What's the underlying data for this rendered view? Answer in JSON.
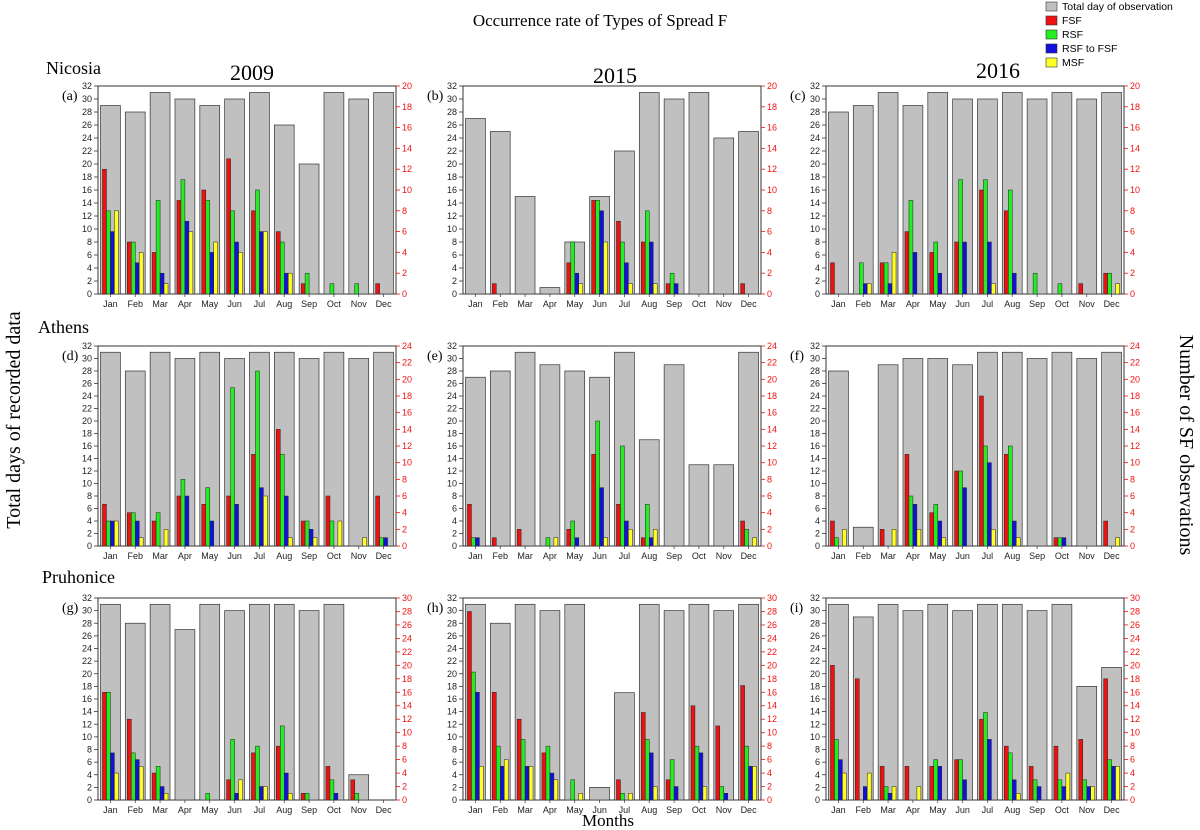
{
  "figure": {
    "title": "Occurrence rate of Types of Spread F",
    "ylabel_left": "Total days of recorded data",
    "ylabel_right": "Number of  SF observations",
    "xlabel": "Months",
    "stations": [
      "Nicosia",
      "Athens",
      "Pruhonice"
    ],
    "years": [
      "2009",
      "2015",
      "2016"
    ]
  },
  "legend": {
    "entries": [
      {
        "label": "Total day of observation",
        "color": "#c0c0c0"
      },
      {
        "label": "FSF",
        "color": "#ee1111"
      },
      {
        "label": "RSF",
        "color": "#22ee22"
      },
      {
        "label": "RSF to FSF",
        "color": "#1111dd"
      },
      {
        "label": "MSF",
        "color": "#ffff22"
      }
    ]
  },
  "chart_data": [
    {
      "type": "bar",
      "panel": "(a)",
      "station": "Nicosia",
      "year": "2009",
      "categories": [
        "Jan",
        "Feb",
        "Mar",
        "Apr",
        "May",
        "Jun",
        "Jul",
        "Aug",
        "Sep",
        "Oct",
        "Nov",
        "Dec"
      ],
      "left_ylim": [
        0,
        32
      ],
      "right_ylim": [
        0,
        20
      ],
      "series": [
        {
          "name": "Total day of observation",
          "axis": "left",
          "values": [
            29,
            28,
            31,
            30,
            29,
            30,
            31,
            26,
            20,
            31,
            30,
            31
          ]
        },
        {
          "name": "FSF",
          "axis": "right",
          "values": [
            12,
            5,
            4,
            9,
            10,
            13,
            8,
            6,
            1,
            0,
            0,
            1
          ]
        },
        {
          "name": "RSF",
          "axis": "right",
          "values": [
            8,
            5,
            9,
            11,
            9,
            8,
            10,
            5,
            2,
            1,
            1,
            0
          ]
        },
        {
          "name": "RSF to FSF",
          "axis": "right",
          "values": [
            6,
            3,
            2,
            7,
            4,
            5,
            6,
            2,
            0,
            0,
            0,
            0
          ]
        },
        {
          "name": "MSF",
          "axis": "right",
          "values": [
            8,
            4,
            1,
            6,
            5,
            4,
            6,
            2,
            0,
            0,
            0,
            0
          ]
        }
      ]
    },
    {
      "type": "bar",
      "panel": "(b)",
      "station": "Nicosia",
      "year": "2015",
      "categories": [
        "Jan",
        "Feb",
        "Mar",
        "Apr",
        "May",
        "Jun",
        "Jul",
        "Aug",
        "Sep",
        "Oct",
        "Nov",
        "Dec"
      ],
      "left_ylim": [
        0,
        32
      ],
      "right_ylim": [
        0,
        20
      ],
      "series": [
        {
          "name": "Total day of observation",
          "axis": "left",
          "values": [
            27,
            25,
            15,
            1,
            8,
            15,
            22,
            31,
            30,
            31,
            24,
            25
          ]
        },
        {
          "name": "FSF",
          "axis": "right",
          "values": [
            0,
            1,
            0,
            0,
            3,
            9,
            7,
            5,
            1,
            0,
            0,
            1
          ]
        },
        {
          "name": "RSF",
          "axis": "right",
          "values": [
            0,
            0,
            0,
            0,
            5,
            9,
            5,
            8,
            2,
            0,
            0,
            0
          ]
        },
        {
          "name": "RSF to FSF",
          "axis": "right",
          "values": [
            0,
            0,
            0,
            0,
            2,
            8,
            3,
            5,
            1,
            0,
            0,
            0
          ]
        },
        {
          "name": "MSF",
          "axis": "right",
          "values": [
            0,
            0,
            0,
            0,
            1,
            5,
            1,
            1,
            0,
            0,
            0,
            0
          ]
        }
      ]
    },
    {
      "type": "bar",
      "panel": "(c)",
      "station": "Nicosia",
      "year": "2016",
      "categories": [
        "Jan",
        "Feb",
        "Mar",
        "Apr",
        "May",
        "Jun",
        "Jul",
        "Aug",
        "Sep",
        "Oct",
        "Nov",
        "Dec"
      ],
      "left_ylim": [
        0,
        32
      ],
      "right_ylim": [
        0,
        20
      ],
      "series": [
        {
          "name": "Total day of observation",
          "axis": "left",
          "values": [
            28,
            29,
            31,
            29,
            31,
            30,
            30,
            31,
            30,
            31,
            30,
            31
          ]
        },
        {
          "name": "FSF",
          "axis": "right",
          "values": [
            3,
            0,
            3,
            6,
            4,
            5,
            10,
            8,
            0,
            0,
            1,
            2
          ]
        },
        {
          "name": "RSF",
          "axis": "right",
          "values": [
            0,
            3,
            3,
            9,
            5,
            11,
            11,
            10,
            2,
            1,
            0,
            2
          ]
        },
        {
          "name": "RSF to FSF",
          "axis": "right",
          "values": [
            0,
            1,
            1,
            4,
            2,
            5,
            5,
            2,
            0,
            0,
            0,
            0
          ]
        },
        {
          "name": "MSF",
          "axis": "right",
          "values": [
            0,
            1,
            4,
            0,
            0,
            0,
            1,
            0,
            0,
            0,
            0,
            1
          ]
        }
      ]
    },
    {
      "type": "bar",
      "panel": "(d)",
      "station": "Athens",
      "year": "2009",
      "categories": [
        "Jan",
        "Feb",
        "Mar",
        "Apr",
        "May",
        "Jun",
        "Jul",
        "Aug",
        "Sep",
        "Oct",
        "Nov",
        "Dec"
      ],
      "left_ylim": [
        0,
        32
      ],
      "right_ylim": [
        0,
        24
      ],
      "series": [
        {
          "name": "Total day of observation",
          "axis": "left",
          "values": [
            31,
            28,
            31,
            30,
            31,
            30,
            31,
            31,
            30,
            31,
            30,
            31
          ]
        },
        {
          "name": "FSF",
          "axis": "right",
          "values": [
            5,
            4,
            3,
            6,
            5,
            6,
            11,
            14,
            3,
            6,
            0,
            6
          ]
        },
        {
          "name": "RSF",
          "axis": "right",
          "values": [
            3,
            4,
            4,
            8,
            7,
            19,
            21,
            11,
            3,
            3,
            0,
            1
          ]
        },
        {
          "name": "RSF to FSF",
          "axis": "right",
          "values": [
            3,
            3,
            0,
            6,
            3,
            5,
            7,
            6,
            2,
            0,
            0,
            1
          ]
        },
        {
          "name": "MSF",
          "axis": "right",
          "values": [
            3,
            1,
            2,
            0,
            0,
            0,
            6,
            1,
            1,
            3,
            1,
            0
          ]
        }
      ]
    },
    {
      "type": "bar",
      "panel": "(e)",
      "station": "Athens",
      "year": "2015",
      "categories": [
        "Jan",
        "Feb",
        "Mar",
        "Apr",
        "May",
        "Jun",
        "Jul",
        "Aug",
        "Sep",
        "Oct",
        "Nov",
        "Dec"
      ],
      "left_ylim": [
        0,
        32
      ],
      "right_ylim": [
        0,
        24
      ],
      "series": [
        {
          "name": "Total day of observation",
          "axis": "left",
          "values": [
            27,
            28,
            31,
            29,
            28,
            27,
            31,
            17,
            29,
            13,
            13,
            31
          ]
        },
        {
          "name": "FSF",
          "axis": "right",
          "values": [
            5,
            1,
            2,
            0,
            2,
            11,
            5,
            1,
            0,
            0,
            0,
            3
          ]
        },
        {
          "name": "RSF",
          "axis": "right",
          "values": [
            1,
            0,
            0,
            1,
            3,
            15,
            12,
            5,
            0,
            0,
            0,
            2
          ]
        },
        {
          "name": "RSF to FSF",
          "axis": "right",
          "values": [
            1,
            0,
            0,
            0,
            1,
            7,
            3,
            1,
            0,
            0,
            0,
            0
          ]
        },
        {
          "name": "MSF",
          "axis": "right",
          "values": [
            0,
            0,
            0,
            1,
            0,
            1,
            2,
            2,
            0,
            0,
            0,
            1
          ]
        }
      ]
    },
    {
      "type": "bar",
      "panel": "(f)",
      "station": "Athens",
      "year": "2016",
      "categories": [
        "Jan",
        "Feb",
        "Mar",
        "Apr",
        "May",
        "Jun",
        "Jul",
        "Aug",
        "Sep",
        "Oct",
        "Nov",
        "Dec"
      ],
      "left_ylim": [
        0,
        32
      ],
      "right_ylim": [
        0,
        24
      ],
      "series": [
        {
          "name": "Total day of observation",
          "axis": "left",
          "values": [
            28,
            3,
            29,
            30,
            30,
            29,
            31,
            31,
            30,
            31,
            30,
            31
          ]
        },
        {
          "name": "FSF",
          "axis": "right",
          "values": [
            3,
            0,
            2,
            11,
            4,
            9,
            18,
            11,
            0,
            1,
            0,
            3
          ]
        },
        {
          "name": "RSF",
          "axis": "right",
          "values": [
            1,
            0,
            0,
            6,
            5,
            9,
            12,
            12,
            0,
            1,
            0,
            0
          ]
        },
        {
          "name": "RSF to FSF",
          "axis": "right",
          "values": [
            0,
            0,
            0,
            5,
            3,
            7,
            10,
            3,
            0,
            1,
            0,
            0
          ]
        },
        {
          "name": "MSF",
          "axis": "right",
          "values": [
            2,
            0,
            2,
            2,
            1,
            0,
            2,
            1,
            0,
            0,
            0,
            1
          ]
        }
      ]
    },
    {
      "type": "bar",
      "panel": "(g)",
      "station": "Pruhonice",
      "year": "2009",
      "categories": [
        "Jan",
        "Feb",
        "Mar",
        "Apr",
        "May",
        "Jun",
        "Jul",
        "Aug",
        "Sep",
        "Oct",
        "Nov",
        "Dec"
      ],
      "left_ylim": [
        0,
        32
      ],
      "right_ylim": [
        0,
        30
      ],
      "series": [
        {
          "name": "Total day of observation",
          "axis": "left",
          "values": [
            31,
            28,
            31,
            27,
            31,
            30,
            31,
            31,
            30,
            31,
            4,
            0
          ]
        },
        {
          "name": "FSF",
          "axis": "right",
          "values": [
            16,
            12,
            4,
            0,
            0,
            3,
            7,
            8,
            1,
            5,
            3,
            0
          ]
        },
        {
          "name": "RSF",
          "axis": "right",
          "values": [
            16,
            7,
            5,
            0,
            1,
            9,
            8,
            11,
            1,
            3,
            1,
            0
          ]
        },
        {
          "name": "RSF to FSF",
          "axis": "right",
          "values": [
            7,
            6,
            2,
            0,
            0,
            1,
            2,
            4,
            0,
            1,
            0,
            0
          ]
        },
        {
          "name": "MSF",
          "axis": "right",
          "values": [
            4,
            5,
            1,
            0,
            0,
            3,
            2,
            1,
            0,
            0,
            0,
            0
          ]
        }
      ]
    },
    {
      "type": "bar",
      "panel": "(h)",
      "station": "Pruhonice",
      "year": "2015",
      "categories": [
        "Jan",
        "Feb",
        "Mar",
        "Apr",
        "May",
        "Jun",
        "Jul",
        "Aug",
        "Sep",
        "Oct",
        "Nov",
        "Dec"
      ],
      "left_ylim": [
        0,
        32
      ],
      "right_ylim": [
        0,
        30
      ],
      "series": [
        {
          "name": "Total day of observation",
          "axis": "left",
          "values": [
            31,
            28,
            31,
            30,
            31,
            2,
            17,
            31,
            30,
            31,
            30,
            31
          ]
        },
        {
          "name": "FSF",
          "axis": "right",
          "values": [
            28,
            16,
            12,
            7,
            0,
            0,
            3,
            13,
            3,
            14,
            11,
            17
          ]
        },
        {
          "name": "RSF",
          "axis": "right",
          "values": [
            19,
            8,
            9,
            8,
            3,
            0,
            1,
            9,
            6,
            8,
            2,
            8
          ]
        },
        {
          "name": "RSF to FSF",
          "axis": "right",
          "values": [
            16,
            5,
            5,
            4,
            0,
            0,
            0,
            7,
            2,
            7,
            1,
            5
          ]
        },
        {
          "name": "MSF",
          "axis": "right",
          "values": [
            5,
            6,
            5,
            3,
            1,
            0,
            1,
            2,
            0,
            2,
            0,
            5
          ]
        }
      ]
    },
    {
      "type": "bar",
      "panel": "(i)",
      "station": "Pruhonice",
      "year": "2016",
      "categories": [
        "Jan",
        "Feb",
        "Mar",
        "Apr",
        "May",
        "Jun",
        "Jul",
        "Aug",
        "Sep",
        "Oct",
        "Nov",
        "Dec"
      ],
      "left_ylim": [
        0,
        32
      ],
      "right_ylim": [
        0,
        30
      ],
      "series": [
        {
          "name": "Total day of observation",
          "axis": "left",
          "values": [
            31,
            29,
            31,
            30,
            31,
            30,
            31,
            31,
            30,
            31,
            18,
            21
          ]
        },
        {
          "name": "FSF",
          "axis": "right",
          "values": [
            20,
            18,
            5,
            5,
            5,
            6,
            12,
            8,
            5,
            8,
            9,
            18
          ]
        },
        {
          "name": "RSF",
          "axis": "right",
          "values": [
            9,
            0,
            2,
            0,
            6,
            6,
            13,
            7,
            3,
            3,
            3,
            6
          ]
        },
        {
          "name": "RSF to FSF",
          "axis": "right",
          "values": [
            6,
            2,
            1,
            0,
            5,
            3,
            9,
            3,
            2,
            2,
            2,
            5
          ]
        },
        {
          "name": "MSF",
          "axis": "right",
          "values": [
            4,
            4,
            2,
            2,
            0,
            0,
            0,
            1,
            0,
            4,
            2,
            5
          ]
        }
      ]
    }
  ]
}
